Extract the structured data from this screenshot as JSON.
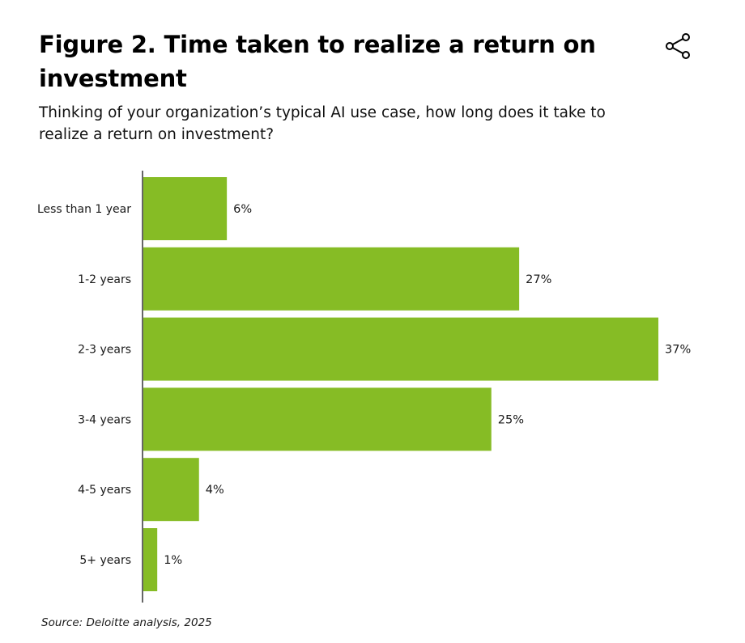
{
  "header": {
    "title": "Figure 2. Time taken to realize a return on investment",
    "subtitle": "Thinking of your organization’s typical AI use case, how long does it take to realize a return on investment?",
    "share_icon": "share-icon"
  },
  "chart_data": {
    "type": "bar",
    "orientation": "horizontal",
    "categories": [
      "Less than 1 year",
      "1-2 years",
      "2-3 years",
      "3-4 years",
      "4-5 years",
      "5+ years"
    ],
    "values": [
      6,
      27,
      37,
      25,
      4,
      1
    ],
    "value_labels": [
      "6%",
      "27%",
      "37%",
      "25%",
      "4%",
      "1%"
    ],
    "unit": "%",
    "bar_color": "#86bc25",
    "grid": false,
    "legend": "none"
  },
  "footer": {
    "source": "Source: Deloitte analysis, 2025"
  }
}
